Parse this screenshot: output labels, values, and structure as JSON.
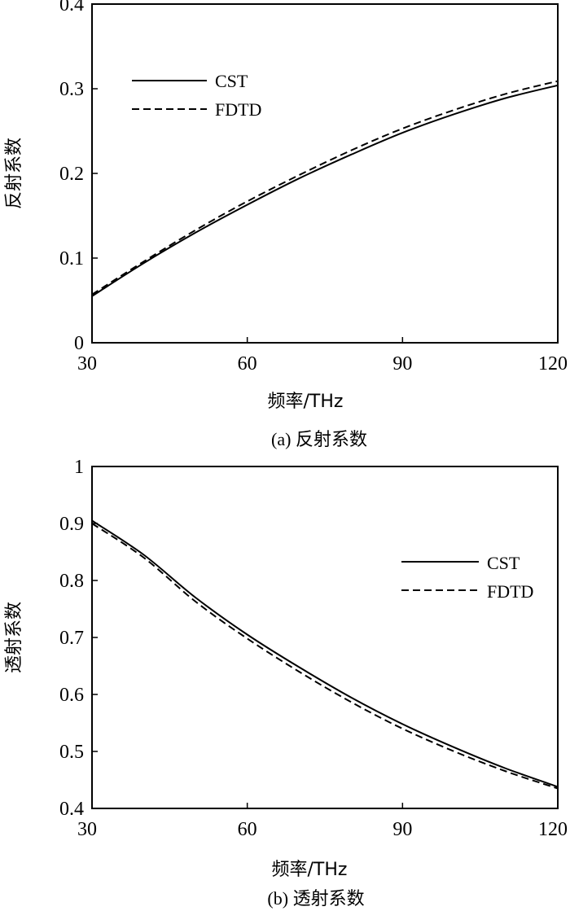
{
  "chart_data": [
    {
      "type": "line",
      "title": "",
      "xlabel": "频率/THz",
      "ylabel": "反射系数",
      "caption": "(a) 反射系数",
      "xlim": [
        30,
        120
      ],
      "ylim": [
        0,
        0.4
      ],
      "xticks": [
        30,
        60,
        90,
        120
      ],
      "yticks": [
        0,
        0.1,
        0.2,
        0.3,
        0.4
      ],
      "xtick_labels": [
        "30",
        "60",
        "90",
        "120"
      ],
      "ytick_labels": [
        "0",
        "0.1",
        "0.2",
        "0.3",
        "0.4"
      ],
      "legend_position": "upper-left",
      "grid": false,
      "series": [
        {
          "name": "CST",
          "style": "solid",
          "x": [
            30,
            40,
            50,
            60,
            70,
            80,
            90,
            100,
            110,
            120
          ],
          "y": [
            0.055,
            0.094,
            0.13,
            0.163,
            0.194,
            0.222,
            0.248,
            0.27,
            0.289,
            0.304
          ]
        },
        {
          "name": "FDTD",
          "style": "dashed",
          "x": [
            30,
            40,
            50,
            60,
            70,
            80,
            90,
            100,
            110,
            120
          ],
          "y": [
            0.057,
            0.096,
            0.133,
            0.167,
            0.198,
            0.227,
            0.253,
            0.275,
            0.294,
            0.309
          ]
        }
      ]
    },
    {
      "type": "line",
      "title": "",
      "xlabel": "频率/THz",
      "ylabel": "透射系数",
      "caption": "(b) 透射系数",
      "xlim": [
        30,
        120
      ],
      "ylim": [
        0.4,
        1
      ],
      "xticks": [
        30,
        60,
        90,
        120
      ],
      "yticks": [
        0.4,
        0.5,
        0.6,
        0.7,
        0.8,
        0.9,
        1
      ],
      "xtick_labels": [
        "30",
        "60",
        "90",
        "120"
      ],
      "ytick_labels": [
        "0.4",
        "0.5",
        "0.6",
        "0.7",
        "0.8",
        "0.9",
        "1"
      ],
      "legend_position": "upper-right",
      "grid": false,
      "series": [
        {
          "name": "CST",
          "style": "solid",
          "x": [
            30,
            40,
            50,
            60,
            70,
            80,
            90,
            100,
            110,
            120
          ],
          "y": [
            0.905,
            0.845,
            0.77,
            0.705,
            0.648,
            0.595,
            0.548,
            0.507,
            0.47,
            0.438
          ]
        },
        {
          "name": "FDTD",
          "style": "dashed",
          "x": [
            30,
            40,
            50,
            60,
            70,
            80,
            90,
            100,
            110,
            120
          ],
          "y": [
            0.9,
            0.84,
            0.763,
            0.698,
            0.64,
            0.587,
            0.54,
            0.5,
            0.465,
            0.435
          ]
        }
      ]
    }
  ]
}
